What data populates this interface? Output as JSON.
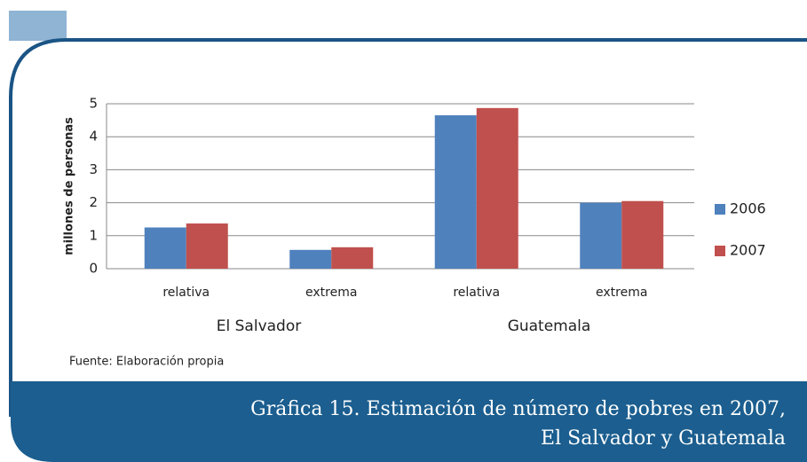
{
  "chart_data": {
    "type": "bar",
    "caption": [
      "Gráfica 15. Estimación de número de pobres en 2007,",
      "El Salvador y Guatemala"
    ],
    "ylabel": "millones de personas",
    "source": "Fuente: Elaboración propia",
    "categories": [
      "relativa",
      "extrema",
      "relativa",
      "extrema"
    ],
    "groups": [
      "El Salvador",
      "Guatemala"
    ],
    "series": [
      {
        "name": "2006",
        "color": "#4f81bd",
        "values": [
          1.25,
          0.57,
          4.65,
          2.0
        ]
      },
      {
        "name": "2007",
        "color": "#c0504d",
        "values": [
          1.37,
          0.65,
          4.87,
          2.05
        ]
      }
    ],
    "ylim": [
      0,
      5
    ],
    "yticks": [
      0,
      1,
      2,
      3,
      4,
      5
    ],
    "grid": true,
    "legend": "right"
  }
}
